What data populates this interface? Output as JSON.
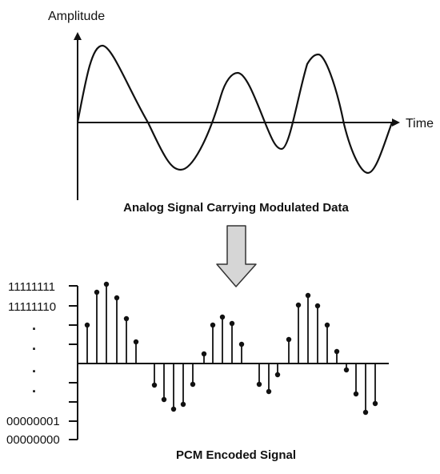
{
  "analog": {
    "y_axis_label": "Amplitude",
    "x_axis_label": "Time",
    "caption": "Analog Signal Carrying Modulated Data"
  },
  "pcm": {
    "caption": "PCM Encoded Signal",
    "level_labels": {
      "top": "11111111",
      "second": "11111110",
      "second_lowest": "00000001",
      "lowest": "00000000"
    },
    "ellipsis": [
      "·",
      "·",
      "·",
      "·"
    ]
  },
  "colors": {
    "line": "#111111",
    "arrow_fill": "#d6d6d6",
    "arrow_stroke": "#333333"
  }
}
